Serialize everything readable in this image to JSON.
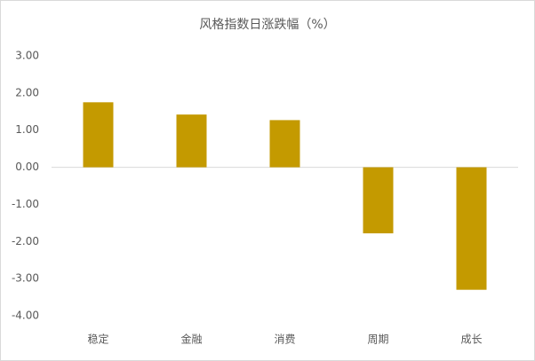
{
  "chart_data": {
    "type": "bar",
    "title": "风格指数日涨跌幅（%）",
    "categories": [
      "稳定",
      "金融",
      "消费",
      "周期",
      "成长"
    ],
    "values": [
      1.75,
      1.42,
      1.27,
      -1.78,
      -3.3
    ],
    "color": "#c49a00",
    "ylim": [
      -4,
      3
    ],
    "yticks": [
      {
        "value": 3,
        "label": "3.00"
      },
      {
        "value": 2,
        "label": "2.00"
      },
      {
        "value": 1,
        "label": "1.00"
      },
      {
        "value": 0,
        "label": "0.00"
      },
      {
        "value": -1,
        "label": "-1.00"
      },
      {
        "value": -2,
        "label": "-2.00"
      },
      {
        "value": -3,
        "label": "-3.00"
      },
      {
        "value": -4,
        "label": "-4.00"
      }
    ],
    "grid": false
  }
}
